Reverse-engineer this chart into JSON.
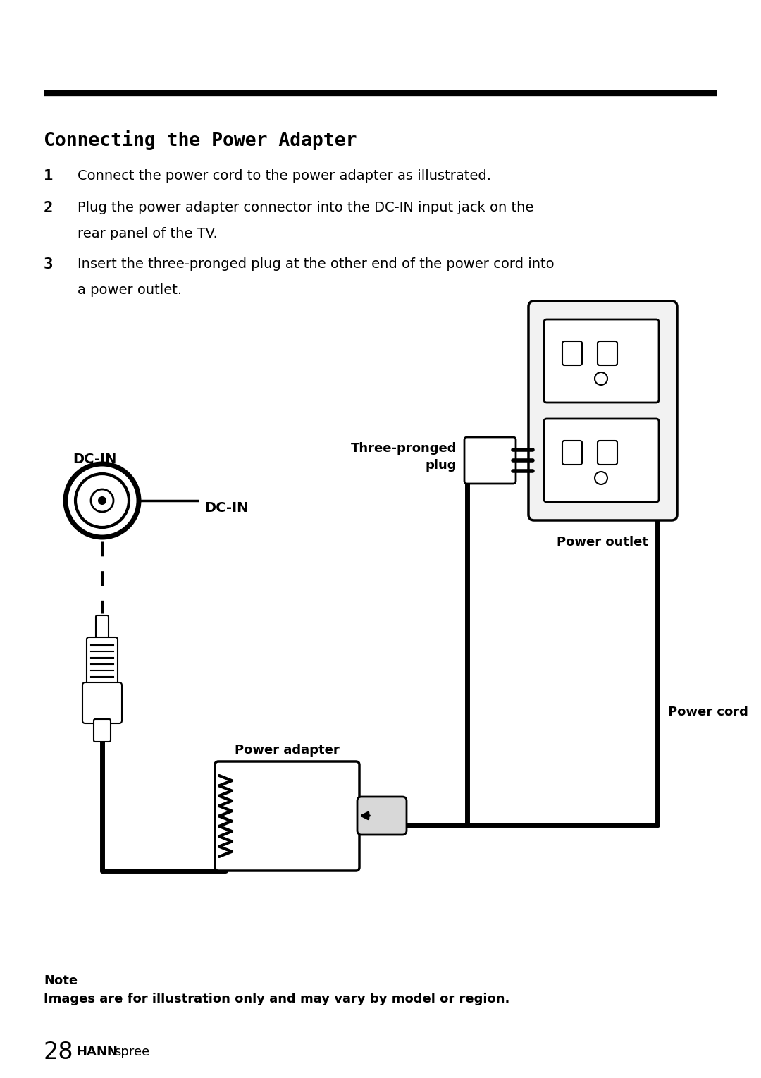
{
  "bg_color": "#ffffff",
  "title": "Connecting the Power Adapter",
  "line1_num": "1",
  "line1_text": "Connect the power cord to the power adapter as illustrated.",
  "line2_text1": "Plug the power adapter connector into the DC-IN input jack on the",
  "line2_text2": "rear panel of the TV.",
  "line2_num": "2",
  "line3_num": "3",
  "line3_text1": "Insert the three-pronged plug at the other end of the power cord into",
  "line3_text2": "a power outlet.",
  "note_label": "Note",
  "note_text": "Images are for illustration only and may vary by model or region.",
  "page_num": "28",
  "brand1": "HANN",
  "brand2": "spree",
  "label_dcin_top": "DC-IN",
  "label_dcin_right": "DC-IN",
  "label_three_pronged": "Three-pronged\nplug",
  "label_power_outlet": "Power outlet",
  "label_power_cord": "Power cord",
  "label_power_adapter": "Power adapter"
}
